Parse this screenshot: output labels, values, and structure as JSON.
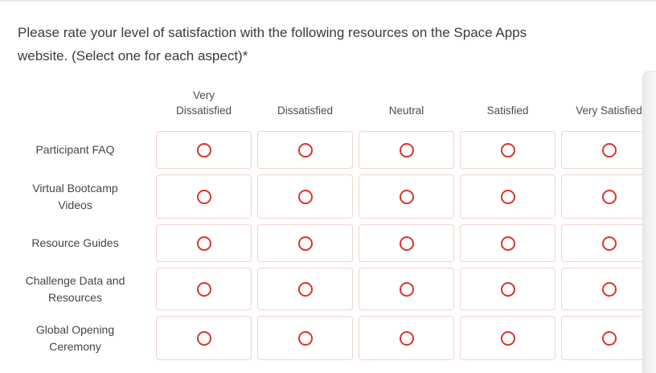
{
  "question": {
    "text": "Please rate your level of satisfaction with the following resources on the Space Apps\nwebsite. (Select one for each aspect)*",
    "required_marker": "*"
  },
  "matrix": {
    "columns": [
      {
        "key": "very-dissatisfied",
        "label": "Very\nDissatisfied"
      },
      {
        "key": "dissatisfied",
        "label": "Dissatisfied"
      },
      {
        "key": "neutral",
        "label": "Neutral"
      },
      {
        "key": "satisfied",
        "label": "Satisfied"
      },
      {
        "key": "very-satisfied",
        "label": "Very Satisfied"
      }
    ],
    "rows": [
      {
        "key": "participant-faq",
        "label": "Participant FAQ"
      },
      {
        "key": "virtual-bootcamp-videos",
        "label": "Virtual Bootcamp Videos"
      },
      {
        "key": "resource-guides",
        "label": "Resource Guides"
      },
      {
        "key": "challenge-data-and-resources",
        "label": "Challenge Data and Resources"
      },
      {
        "key": "global-opening-ceremony",
        "label": "Global Opening Ceremony"
      }
    ],
    "selection_state": "none-selected"
  },
  "colors": {
    "radio_red": "#d9352b",
    "cell_border_pink": "#f3d3cf",
    "question_text": "#3b3b3b",
    "header_text": "#4d4d4d",
    "row_label_text": "#454545",
    "scrollbar_gray": "#e9e9e9"
  }
}
